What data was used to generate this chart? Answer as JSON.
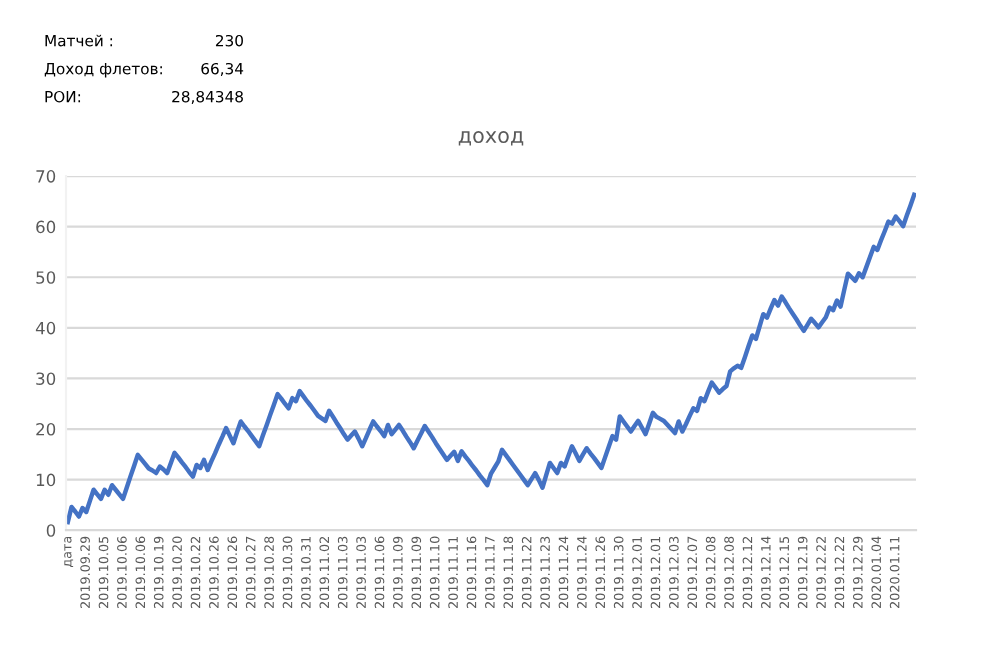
{
  "chart_data": {
    "type": "line",
    "title": "доход",
    "annotations": [
      "Матчей :",
      "230",
      "Доход флетов:",
      "66,34",
      "РОИ:",
      "28,84348"
    ],
    "categories": [
      "дата",
      null,
      null,
      null,
      null,
      "2019.09.29",
      null,
      null,
      null,
      null,
      "2019.10.05",
      null,
      null,
      null,
      null,
      "2019.10.06",
      null,
      null,
      null,
      null,
      "2019.10.06",
      null,
      null,
      null,
      null,
      "2019.10.19",
      null,
      null,
      null,
      null,
      "2019.10.20",
      null,
      null,
      null,
      null,
      "2019.10.22",
      null,
      null,
      null,
      null,
      "2019.10.26",
      null,
      null,
      null,
      null,
      "2019.10.26",
      null,
      null,
      null,
      null,
      "2019.10.27",
      null,
      null,
      null,
      null,
      "2019.10.28",
      null,
      null,
      null,
      null,
      "2019.10.30",
      null,
      null,
      null,
      null,
      "2019.10.31",
      null,
      null,
      null,
      null,
      "2019.11.02",
      null,
      null,
      null,
      null,
      "2019.11.03",
      null,
      null,
      null,
      null,
      "2019.11.03",
      null,
      null,
      null,
      null,
      "2019.11.06",
      null,
      null,
      null,
      null,
      "2019.11.09",
      null,
      null,
      null,
      null,
      "2019.11.09",
      null,
      null,
      null,
      null,
      "2019.11.10",
      null,
      null,
      null,
      null,
      "2019.11.11",
      null,
      null,
      null,
      null,
      "2019.11.16",
      null,
      null,
      null,
      null,
      "2019.11.17",
      null,
      null,
      null,
      null,
      "2019.11.18",
      null,
      null,
      null,
      null,
      "2019.11.22",
      null,
      null,
      null,
      null,
      "2019.11.23",
      null,
      null,
      null,
      null,
      "2019.11.24",
      null,
      null,
      null,
      null,
      "2019.11.24",
      null,
      null,
      null,
      null,
      "2019.11.26",
      null,
      null,
      null,
      null,
      "2019.11.30",
      null,
      null,
      null,
      null,
      "2019.12.01",
      null,
      null,
      null,
      null,
      "2019.12.01",
      null,
      null,
      null,
      null,
      "2019.12.03",
      null,
      null,
      null,
      null,
      "2019.12.07",
      null,
      null,
      null,
      null,
      "2019.12.08",
      null,
      null,
      null,
      null,
      "2019.12.08",
      null,
      null,
      null,
      null,
      "2019.12.12",
      null,
      null,
      null,
      null,
      "2019.12.14",
      null,
      null,
      null,
      null,
      "2019.12.15",
      null,
      null,
      null,
      null,
      "2019.12.19",
      null,
      null,
      null,
      null,
      "2019.12.22",
      null,
      null,
      null,
      null,
      "2019.12.22",
      null,
      null,
      null,
      null,
      "2019.12.29",
      null,
      null,
      null,
      null,
      "2020.01.04",
      null,
      null,
      null,
      null,
      "2020.01.11",
      null,
      null,
      null,
      null,
      null
    ],
    "values": [
      1.6,
      4.6,
      3.7,
      2.7,
      4.4,
      3.6,
      5.8,
      8,
      7.1,
      6.2,
      8,
      7,
      8.9,
      8,
      7.1,
      6.2,
      8.4,
      10.6,
      12.7,
      14.9,
      14,
      13.1,
      12.2,
      11.8,
      11.3,
      12.6,
      12,
      11.3,
      13.3,
      15.3,
      14.4,
      13.4,
      12.5,
      11.5,
      10.6,
      12.9,
      12.3,
      13.9,
      11.9,
      13.6,
      15.2,
      16.9,
      18.5,
      20.2,
      18.7,
      17.2,
      19.4,
      21.5,
      20.5,
      19.6,
      18.6,
      17.6,
      16.6,
      18.7,
      20.7,
      22.8,
      24.8,
      26.9,
      26,
      25,
      24.1,
      26.1,
      25.5,
      27.5,
      26.5,
      25.5,
      24.6,
      23.6,
      22.6,
      22.1,
      21.6,
      23.6,
      22.5,
      21.3,
      20.2,
      19,
      17.9,
      18.7,
      19.5,
      18.1,
      16.6,
      18.2,
      19.9,
      21.5,
      20.5,
      19.6,
      18.6,
      20.8,
      19,
      19.9,
      20.8,
      19.7,
      18.5,
      17.4,
      16.2,
      17.7,
      19.1,
      20.6,
      19.5,
      18.4,
      17.2,
      16.1,
      15,
      13.9,
      14.7,
      15.5,
      13.7,
      15.6,
      14.6,
      13.7,
      12.7,
      11.8,
      10.8,
      9.9,
      8.9,
      11.2,
      12.4,
      13.6,
      15.9,
      14.9,
      13.9,
      12.9,
      11.9,
      10.9,
      9.9,
      8.9,
      10.1,
      11.3,
      9.9,
      8.4,
      10.9,
      13.3,
      12.3,
      11.3,
      13.3,
      12.6,
      14.6,
      16.6,
      15.2,
      13.7,
      15,
      16.2,
      15.2,
      14.3,
      13.3,
      12.3,
      14.4,
      16.5,
      18.6,
      17.9,
      22.5,
      21.5,
      20.5,
      19.5,
      20.6,
      21.6,
      20.3,
      19,
      21.1,
      23.2,
      22.4,
      22,
      21.6,
      20.8,
      20,
      19.2,
      21.5,
      19.5,
      21,
      22.6,
      24.1,
      23.6,
      26.1,
      25.5,
      27.4,
      29.2,
      28.2,
      27.2,
      27.9,
      28.5,
      31.4,
      32,
      32.5,
      32.1,
      34.2,
      36.4,
      38.5,
      37.8,
      40.3,
      42.7,
      42,
      43.8,
      45.5,
      44.4,
      46.2,
      45.1,
      43.9,
      42.8,
      41.7,
      40.5,
      39.4,
      40.6,
      41.8,
      41,
      40.1,
      41.1,
      42.1,
      44,
      43.5,
      45.4,
      44.2,
      47.5,
      50.7,
      50,
      49.3,
      50.8,
      50,
      52,
      54,
      56,
      55.4,
      57.3,
      59.1,
      61,
      60.6,
      62,
      61.1,
      60.1,
      62.2,
      64.2,
      66.3
    ],
    "color": "#4472c4",
    "ylim": [
      0,
      70
    ],
    "yticks": [
      0,
      10,
      20,
      30,
      40,
      50,
      60,
      70
    ],
    "grid": "y"
  }
}
